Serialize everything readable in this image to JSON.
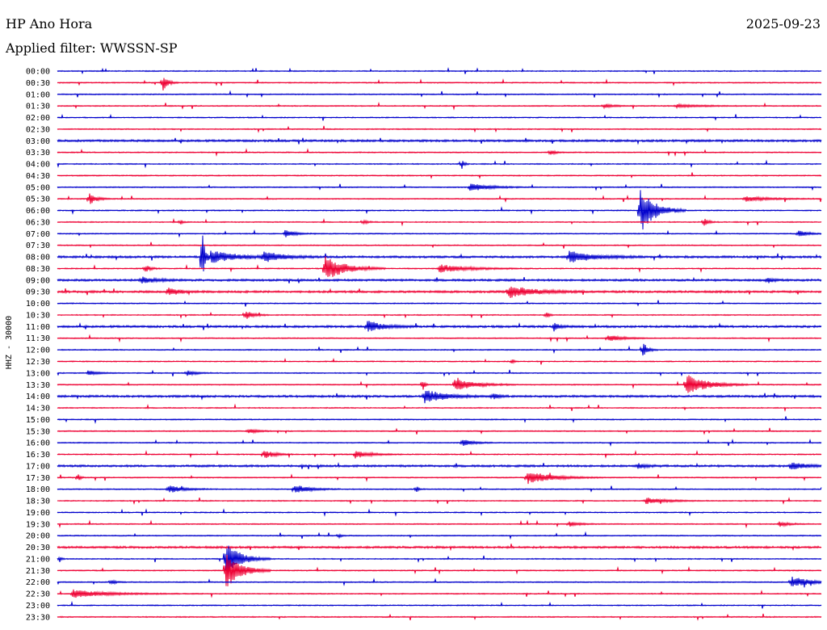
{
  "header": {
    "station": "HP Ano Hora",
    "date": "2025-09-23",
    "filter": "Applied filter: WWSSN-SP"
  },
  "chart_data": {
    "type": "line",
    "title": "HP Ano Hora",
    "ylabel": "HHZ - 30000",
    "colors": [
      "#0000cc",
      "#ee0033"
    ],
    "row_labels": [
      "00:00",
      "00:30",
      "01:00",
      "01:30",
      "02:00",
      "02:30",
      "03:00",
      "03:30",
      "04:00",
      "04:30",
      "05:00",
      "05:30",
      "06:00",
      "06:30",
      "07:00",
      "07:30",
      "08:00",
      "08:30",
      "09:00",
      "09:30",
      "10:00",
      "10:30",
      "11:00",
      "11:30",
      "12:00",
      "12:30",
      "13:00",
      "13:30",
      "14:00",
      "14:30",
      "15:00",
      "15:30",
      "16:00",
      "16:30",
      "17:00",
      "17:30",
      "18:00",
      "18:30",
      "19:00",
      "19:30",
      "20:00",
      "20:30",
      "21:00",
      "21:30",
      "22:00",
      "22:30",
      "23:00",
      "23:30"
    ],
    "events": [
      {
        "row": 1,
        "x": 0.138,
        "amp": 10,
        "dur": 0.01
      },
      {
        "row": 3,
        "x": 0.715,
        "amp": 3,
        "dur": 0.02
      },
      {
        "row": 3,
        "x": 0.81,
        "amp": 2,
        "dur": 0.05
      },
      {
        "row": 7,
        "x": 0.645,
        "amp": 4,
        "dur": 0.01
      },
      {
        "row": 8,
        "x": 0.529,
        "amp": 7,
        "dur": 0.005
      },
      {
        "row": 10,
        "x": 0.54,
        "amp": 5,
        "dur": 0.04
      },
      {
        "row": 11,
        "x": 0.042,
        "amp": 7,
        "dur": 0.015
      },
      {
        "row": 11,
        "x": 0.9,
        "amp": 3,
        "dur": 0.05
      },
      {
        "row": 12,
        "x": 0.763,
        "amp": 28,
        "dur": 0.03
      },
      {
        "row": 13,
        "x": 0.846,
        "amp": 5,
        "dur": 0.01
      },
      {
        "row": 13,
        "x": 0.161,
        "amp": 4,
        "dur": 0.005
      },
      {
        "row": 13,
        "x": 0.4,
        "amp": 3,
        "dur": 0.01
      },
      {
        "row": 14,
        "x": 0.298,
        "amp": 5,
        "dur": 0.02
      },
      {
        "row": 14,
        "x": 0.97,
        "amp": 4,
        "dur": 0.02
      },
      {
        "row": 16,
        "x": 0.19,
        "amp": 45,
        "dur": 0.004
      },
      {
        "row": 16,
        "x": 0.2,
        "amp": 8,
        "dur": 0.05
      },
      {
        "row": 16,
        "x": 0.27,
        "amp": 6,
        "dur": 0.04
      },
      {
        "row": 16,
        "x": 0.67,
        "amp": 7,
        "dur": 0.05
      },
      {
        "row": 17,
        "x": 0.115,
        "amp": 5,
        "dur": 0.01
      },
      {
        "row": 17,
        "x": 0.35,
        "amp": 16,
        "dur": 0.04
      },
      {
        "row": 17,
        "x": 0.5,
        "amp": 5,
        "dur": 0.06
      },
      {
        "row": 18,
        "x": 0.11,
        "amp": 4,
        "dur": 0.03
      },
      {
        "row": 18,
        "x": 0.93,
        "amp": 4,
        "dur": 0.01
      },
      {
        "row": 19,
        "x": 0.145,
        "amp": 6,
        "dur": 0.02
      },
      {
        "row": 19,
        "x": 0.59,
        "amp": 8,
        "dur": 0.05
      },
      {
        "row": 21,
        "x": 0.246,
        "amp": 6,
        "dur": 0.015
      },
      {
        "row": 21,
        "x": 0.64,
        "amp": 5,
        "dur": 0.005
      },
      {
        "row": 22,
        "x": 0.405,
        "amp": 8,
        "dur": 0.03
      },
      {
        "row": 22,
        "x": 0.65,
        "amp": 6,
        "dur": 0.01
      },
      {
        "row": 23,
        "x": 0.72,
        "amp": 4,
        "dur": 0.03
      },
      {
        "row": 24,
        "x": 0.766,
        "amp": 10,
        "dur": 0.01
      },
      {
        "row": 25,
        "x": 0.595,
        "amp": 3,
        "dur": 0.005
      },
      {
        "row": 26,
        "x": 0.04,
        "amp": 3,
        "dur": 0.02
      },
      {
        "row": 26,
        "x": 0.17,
        "amp": 3,
        "dur": 0.02
      },
      {
        "row": 27,
        "x": 0.823,
        "amp": 14,
        "dur": 0.04
      },
      {
        "row": 27,
        "x": 0.52,
        "amp": 8,
        "dur": 0.04
      },
      {
        "row": 27,
        "x": 0.478,
        "amp": 10,
        "dur": 0.004
      },
      {
        "row": 28,
        "x": 0.48,
        "amp": 9,
        "dur": 0.04
      },
      {
        "row": 28,
        "x": 0.57,
        "amp": 4,
        "dur": 0.01
      },
      {
        "row": 31,
        "x": 0.25,
        "amp": 3,
        "dur": 0.02
      },
      {
        "row": 32,
        "x": 0.53,
        "amp": 5,
        "dur": 0.02
      },
      {
        "row": 33,
        "x": 0.27,
        "amp": 6,
        "dur": 0.02
      },
      {
        "row": 33,
        "x": 0.39,
        "amp": 5,
        "dur": 0.03
      },
      {
        "row": 34,
        "x": 0.96,
        "amp": 5,
        "dur": 0.03
      },
      {
        "row": 34,
        "x": 0.76,
        "amp": 3,
        "dur": 0.02
      },
      {
        "row": 35,
        "x": 0.615,
        "amp": 8,
        "dur": 0.05
      },
      {
        "row": 35,
        "x": 0.027,
        "amp": 7,
        "dur": 0.004
      },
      {
        "row": 36,
        "x": 0.145,
        "amp": 5,
        "dur": 0.03
      },
      {
        "row": 36,
        "x": 0.31,
        "amp": 6,
        "dur": 0.03
      },
      {
        "row": 36,
        "x": 0.47,
        "amp": 4,
        "dur": 0.005
      },
      {
        "row": 37,
        "x": 0.77,
        "amp": 4,
        "dur": 0.04
      },
      {
        "row": 39,
        "x": 0.67,
        "amp": 3,
        "dur": 0.02
      },
      {
        "row": 39,
        "x": 0.945,
        "amp": 3,
        "dur": 0.02
      },
      {
        "row": 40,
        "x": 0.368,
        "amp": 3,
        "dur": 0.005
      },
      {
        "row": 42,
        "x": 0.22,
        "amp": 22,
        "dur": 0.03
      },
      {
        "row": 42,
        "x": 0.003,
        "amp": 4,
        "dur": 0.004
      },
      {
        "row": 43,
        "x": 0.22,
        "amp": 24,
        "dur": 0.03
      },
      {
        "row": 44,
        "x": 0.96,
        "amp": 7,
        "dur": 0.04
      },
      {
        "row": 44,
        "x": 0.07,
        "amp": 3,
        "dur": 0.01
      },
      {
        "row": 45,
        "x": 0.02,
        "amp": 5,
        "dur": 0.07
      }
    ]
  }
}
